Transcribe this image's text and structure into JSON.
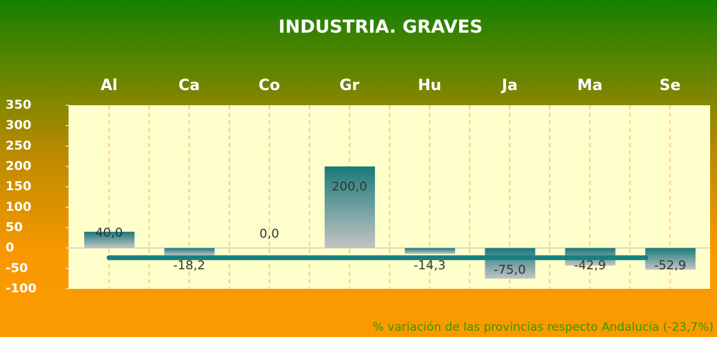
{
  "chart_data": {
    "type": "bar",
    "title": "INDUSTRIA. GRAVES",
    "categories": [
      "Al",
      "Ca",
      "Co",
      "Gr",
      "Hu",
      "Ja",
      "Ma",
      "Se"
    ],
    "values": [
      40.0,
      -18.2,
      0.0,
      200.0,
      -14.3,
      -75.0,
      -42.9,
      -52.9
    ],
    "value_labels": [
      "40,0",
      "-18,2",
      "0,0",
      "200,0",
      "-14,3",
      "-75,0",
      "-42,9",
      "-52,9"
    ],
    "reference_value": -23.7,
    "note": "% variación de las provincias respecto Andalucía (-23,7%)",
    "ylim": [
      -100,
      350
    ],
    "yticks": [
      -100,
      -50,
      0,
      50,
      100,
      150,
      200,
      250,
      300,
      350
    ],
    "color": "#1a7a7a",
    "reference_color": "#168080"
  }
}
